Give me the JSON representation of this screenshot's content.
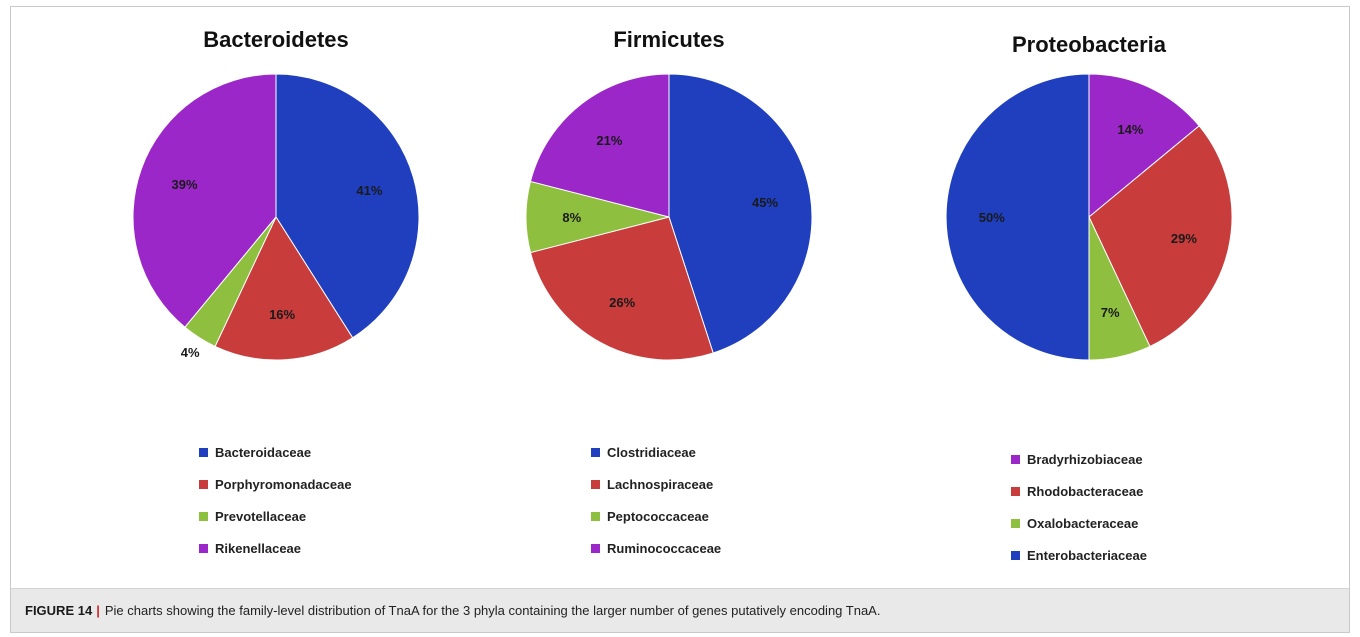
{
  "chart_data": [
    {
      "type": "pie",
      "title": "Bacteroidetes",
      "slices": [
        {
          "name": "Bacteroidaceae",
          "value": 41,
          "label": "41%",
          "color": "#1f3fbf"
        },
        {
          "name": "Porphyromonadaceae",
          "value": 16,
          "label": "16%",
          "color": "#c83c3c"
        },
        {
          "name": "Prevotellaceae",
          "value": 4,
          "label": "4%",
          "color": "#8fbf3f"
        },
        {
          "name": "Rikenellaceae",
          "value": 39,
          "label": "39%",
          "color": "#9b27c9"
        }
      ],
      "legend": [
        "Bacteroidaceae",
        "Porphyromonadaceae",
        "Prevotellaceae",
        "Rikenellaceae"
      ]
    },
    {
      "type": "pie",
      "title": "Firmicutes",
      "slices": [
        {
          "name": "Clostridiaceae",
          "value": 45,
          "label": "45%",
          "color": "#1f3fbf"
        },
        {
          "name": "Lachnospiraceae",
          "value": 26,
          "label": "26%",
          "color": "#c83c3c"
        },
        {
          "name": "Peptococcaceae",
          "value": 8,
          "label": "8%",
          "color": "#8fbf3f"
        },
        {
          "name": "Ruminococcaceae",
          "value": 21,
          "label": "21%",
          "color": "#9b27c9"
        }
      ],
      "legend": [
        "Clostridiaceae",
        "Lachnospiraceae",
        "Peptococcaceae",
        "Ruminococcaceae"
      ]
    },
    {
      "type": "pie",
      "title": "Proteobacteria",
      "slices": [
        {
          "name": "Bradyrhizobiaceae",
          "value": 14,
          "label": "14%",
          "color": "#9b27c9"
        },
        {
          "name": "Rhodobacteraceae",
          "value": 29,
          "label": "29%",
          "color": "#c83c3c"
        },
        {
          "name": "Oxalobacteraceae",
          "value": 7,
          "label": "7%",
          "color": "#8fbf3f"
        },
        {
          "name": "Enterobacteriaceae",
          "value": 50,
          "label": "50%",
          "color": "#1f3fbf"
        }
      ],
      "legend": [
        "Bradyrhizobiaceae",
        "Rhodobacteraceae",
        "Oxalobacteraceae",
        "Enterobacteriaceae"
      ]
    }
  ],
  "caption": {
    "label": "FIGURE 14",
    "separator": "|",
    "text": "Pie charts showing the family-level distribution of TnaA for the 3 phyla containing the larger number of genes putatively encoding TnaA."
  }
}
